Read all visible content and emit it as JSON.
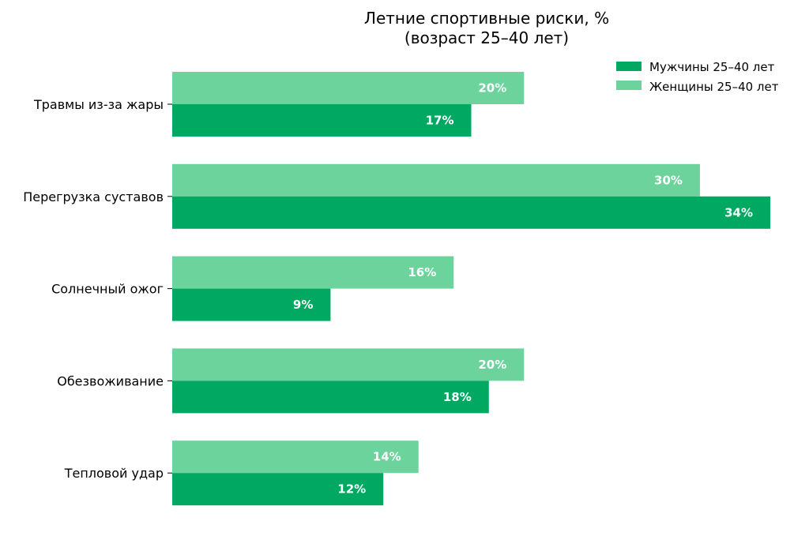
{
  "chart_data": {
    "type": "bar",
    "orientation": "horizontal",
    "title": [
      "Летние спортивные риски, %",
      "(возраст 25–40 лет)"
    ],
    "categories": [
      "Травмы из-за жары",
      "Перегрузка суставов",
      "Солнечный ожог",
      "Обезвоживание",
      "Тепловой удар"
    ],
    "series": [
      {
        "name": "Мужчины 25–40 лет",
        "values": [
          17,
          34,
          9,
          18,
          12
        ],
        "labels": [
          "17%",
          "34%",
          "9%",
          "18%",
          "12%"
        ],
        "color": "#00a862"
      },
      {
        "name": "Женщины 25–40 лет",
        "values": [
          20,
          30,
          16,
          20,
          14
        ],
        "labels": [
          "20%",
          "30%",
          "16%",
          "20%",
          "14%"
        ],
        "color": "#6bd39b"
      }
    ],
    "xlim": [
      0,
      34
    ],
    "grid": false,
    "legend": "top-right"
  }
}
